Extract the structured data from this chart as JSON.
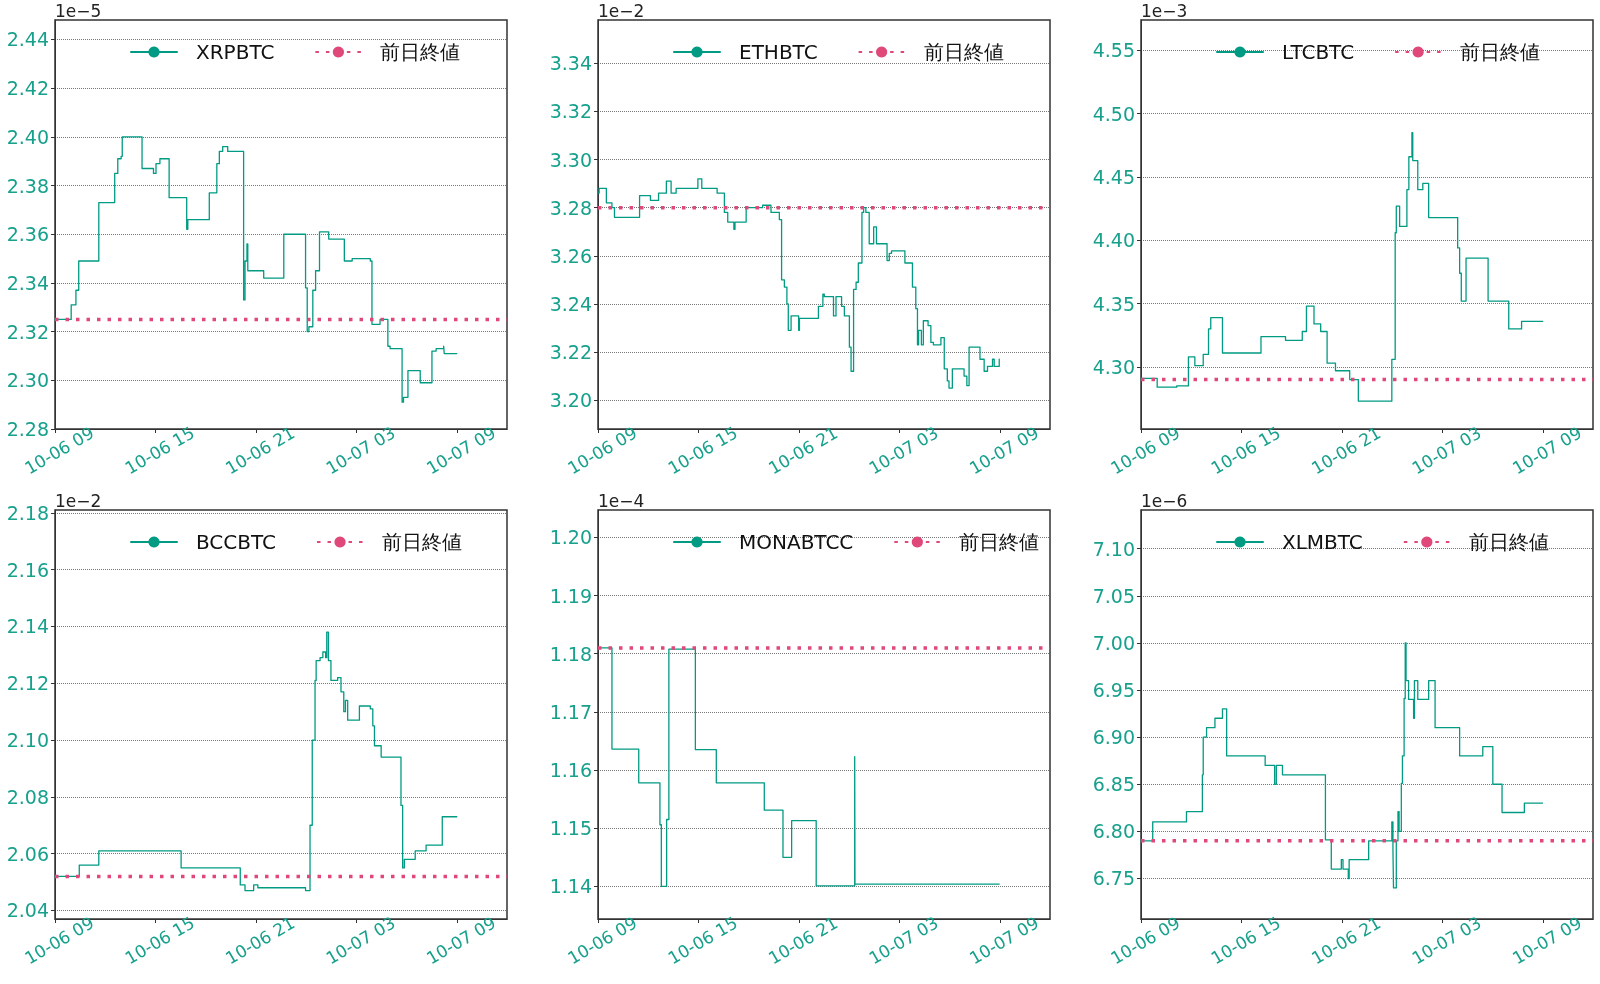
{
  "chart_data": [
    {
      "type": "step",
      "annotations": [
        "1e−5"
      ],
      "legend": "top",
      "grid": "y",
      "xlim": [
        "--10-06T09:00",
        "--10-07T12:00"
      ],
      "xticks": [
        {
          "value": "--10-06T09:00",
          "label": "10-06 09"
        },
        {
          "value": "--10-06T15:00",
          "label": "10-06 15"
        },
        {
          "value": "--10-06T21:00",
          "label": "10-06 21"
        },
        {
          "value": "--10-07T03:00",
          "label": "10-07 03"
        },
        {
          "value": "--10-07T09:00",
          "label": "10-07 09"
        }
      ],
      "ylim": [
        2.28,
        2.448
      ],
      "yticks": [
        {
          "value": 2.28,
          "label": "2.28"
        },
        {
          "value": 2.3,
          "label": "2.30"
        },
        {
          "value": 2.32,
          "label": "2.32"
        },
        {
          "value": 2.34,
          "label": "2.34"
        },
        {
          "value": 2.36,
          "label": "2.36"
        },
        {
          "value": 2.38,
          "label": "2.38"
        },
        {
          "value": 2.4,
          "label": "2.40"
        },
        {
          "value": 2.42,
          "label": "2.42"
        },
        {
          "value": 2.44,
          "label": "2.44"
        }
      ],
      "x": [
        "--10-06T09:00",
        "--10-06T09:58",
        "--10-06T10:15",
        "--10-06T10:25",
        "--10-06T11:37",
        "--10-06T12:34",
        "--10-06T12:45",
        "--10-06T12:57",
        "--10-06T13:01",
        "--10-06T14:12",
        "--10-06T14:53",
        "--10-06T15:02",
        "--10-06T15:16",
        "--10-06T15:49",
        "--10-06T16:52",
        "--10-06T16:56",
        "--10-06T18:13",
        "--10-06T18:40",
        "--10-06T18:49",
        "--10-06T19:01",
        "--10-06T19:19",
        "--10-06T20:16",
        "--10-06T20:21",
        "--10-06T20:28",
        "--10-06T20:31",
        "--10-06T21:28",
        "--10-06T22:40",
        "--10-06T23:58",
        "--10-07T00:04",
        "--10-07T00:10",
        "--10-07T00:24",
        "--10-07T00:34",
        "--10-07T00:48",
        "--10-07T01:21",
        "--10-07T02:17",
        "--10-07T02:45",
        "--10-07T03:50",
        "--10-07T03:56",
        "--10-07T04:25",
        "--10-07T04:53",
        "--10-07T05:01",
        "--10-07T05:44",
        "--10-07T05:49",
        "--10-07T06:05",
        "--10-07T06:49",
        "--10-07T07:31",
        "--10-07T07:46",
        "--10-07T08:13",
        "--10-07T08:15",
        "--10-07T09:00"
      ],
      "series": [
        {
          "name": "XRPBTC",
          "color": "#009b82",
          "values": [
            2.325,
            2.331,
            2.337,
            2.349,
            2.373,
            2.385,
            2.391,
            2.392,
            2.4,
            2.387,
            2.385,
            2.389,
            2.391,
            2.375,
            2.362,
            2.366,
            2.377,
            2.389,
            2.394,
            2.396,
            2.394,
            2.333,
            2.349,
            2.356,
            2.345,
            2.342,
            2.36,
            2.338,
            2.32,
            2.322,
            2.337,
            2.345,
            2.361,
            2.358,
            2.349,
            2.35,
            2.349,
            2.323,
            2.325,
            2.314,
            2.313,
            2.291,
            2.293,
            2.304,
            2.299,
            2.312,
            2.313,
            2.314,
            2.311,
            2.311
          ]
        }
      ],
      "ref_lines": [
        {
          "axis": "y",
          "value": 2.325,
          "label": "前日終値",
          "color": "#e0487a",
          "line_style": "dotted"
        }
      ]
    },
    {
      "type": "step",
      "annotations": [
        "1e−2"
      ],
      "legend": "top",
      "grid": "y",
      "xlim": [
        "--10-06T09:00",
        "--10-07T12:00"
      ],
      "xticks": [
        {
          "value": "--10-06T09:00",
          "label": "10-06 09"
        },
        {
          "value": "--10-06T15:00",
          "label": "10-06 15"
        },
        {
          "value": "--10-06T21:00",
          "label": "10-06 21"
        },
        {
          "value": "--10-07T03:00",
          "label": "10-07 03"
        },
        {
          "value": "--10-07T09:00",
          "label": "10-07 09"
        }
      ],
      "ylim": [
        3.188,
        3.358
      ],
      "yticks": [
        {
          "value": 3.2,
          "label": "3.20"
        },
        {
          "value": 3.22,
          "label": "3.22"
        },
        {
          "value": 3.24,
          "label": "3.24"
        },
        {
          "value": 3.26,
          "label": "3.26"
        },
        {
          "value": 3.28,
          "label": "3.28"
        },
        {
          "value": 3.3,
          "label": "3.30"
        },
        {
          "value": 3.32,
          "label": "3.32"
        },
        {
          "value": 3.34,
          "label": "3.34"
        }
      ],
      "x": [
        "--10-06T09:00",
        "--10-06T09:04",
        "--10-06T09:30",
        "--10-06T09:50",
        "--10-06T09:59",
        "--10-06T11:29",
        "--10-06T12:08",
        "--10-06T12:37",
        "--10-06T13:05",
        "--10-06T13:22",
        "--10-06T13:40",
        "--10-06T14:04",
        "--10-06T14:58",
        "--10-06T15:12",
        "--10-06T16:07",
        "--10-06T16:33",
        "--10-06T16:45",
        "--10-06T17:07",
        "--10-06T17:11",
        "--10-06T17:51",
        "--10-06T18:50",
        "--10-06T19:20",
        "--10-06T19:50",
        "--10-06T19:58",
        "--10-06T20:08",
        "--10-06T20:17",
        "--10-06T20:22",
        "--10-06T20:32",
        "--10-06T20:59",
        "--10-06T21:02",
        "--10-06T22:10",
        "--10-06T22:26",
        "--10-06T22:31",
        "--10-06T23:04",
        "--10-06T23:13",
        "--10-06T23:33",
        "--10-06T23:43",
        "--10-07T00:01",
        "--10-07T00:07",
        "--10-07T00:16",
        "--10-07T00:25",
        "--10-07T00:33",
        "--10-07T00:46",
        "--10-07T00:52",
        "--10-07T01:00",
        "--10-07T01:12",
        "--10-07T01:28",
        "--10-07T01:38",
        "--10-07T02:00",
        "--10-07T02:16",
        "--10-07T02:24",
        "--10-07T02:32",
        "--10-07T03:20",
        "--10-07T03:47",
        "--10-07T03:59",
        "--10-07T04:05",
        "--10-07T04:09",
        "--10-07T04:19",
        "--10-07T04:26",
        "--10-07T04:43",
        "--10-07T04:53",
        "--10-07T05:02",
        "--10-07T05:29",
        "--10-07T05:41",
        "--10-07T05:52",
        "--10-07T05:58",
        "--10-07T06:10",
        "--10-07T06:52",
        "--10-07T07:02",
        "--10-07T07:10",
        "--10-07T07:49",
        "--10-07T08:04",
        "--10-07T08:16",
        "--10-07T08:34",
        "--10-07T08:40",
        "--10-07T08:58"
      ],
      "series": [
        {
          "name": "ETHBTC",
          "color": "#009b82",
          "values": [
            3.286,
            3.288,
            3.282,
            3.28,
            3.276,
            3.285,
            3.283,
            3.286,
            3.291,
            3.286,
            3.288,
            3.288,
            3.292,
            3.288,
            3.286,
            3.278,
            3.274,
            3.271,
            3.274,
            3.28,
            3.281,
            3.278,
            3.275,
            3.25,
            3.247,
            3.24,
            3.229,
            3.235,
            3.229,
            3.234,
            3.239,
            3.244,
            3.243,
            3.235,
            3.243,
            3.239,
            3.235,
            3.222,
            3.212,
            3.246,
            3.249,
            3.257,
            3.278,
            3.28,
            3.278,
            3.265,
            3.272,
            3.265,
            3.265,
            3.258,
            3.261,
            3.262,
            3.257,
            3.247,
            3.238,
            3.223,
            3.229,
            3.223,
            3.233,
            3.231,
            3.224,
            3.223,
            3.226,
            3.213,
            3.208,
            3.205,
            3.213,
            3.21,
            3.206,
            3.222,
            3.217,
            3.212,
            3.214,
            3.217,
            3.214,
            3.217
          ]
        }
      ],
      "ref_lines": [
        {
          "axis": "y",
          "value": 3.28,
          "label": "前日終値",
          "color": "#e0487a",
          "line_style": "dotted"
        }
      ]
    },
    {
      "type": "step",
      "annotations": [
        "1e−3"
      ],
      "legend": "top",
      "grid": "y",
      "xlim": [
        "--10-06T09:00",
        "--10-07T12:00"
      ],
      "xticks": [
        {
          "value": "--10-06T09:00",
          "label": "10-06 09"
        },
        {
          "value": "--10-06T15:00",
          "label": "10-06 15"
        },
        {
          "value": "--10-06T21:00",
          "label": "10-06 21"
        },
        {
          "value": "--10-07T03:00",
          "label": "10-07 03"
        },
        {
          "value": "--10-07T09:00",
          "label": "10-07 09"
        }
      ],
      "ylim": [
        4.251,
        4.574
      ],
      "yticks": [
        {
          "value": 4.3,
          "label": "4.30"
        },
        {
          "value": 4.35,
          "label": "4.35"
        },
        {
          "value": 4.4,
          "label": "4.40"
        },
        {
          "value": 4.45,
          "label": "4.45"
        },
        {
          "value": 4.5,
          "label": "4.50"
        },
        {
          "value": 4.55,
          "label": "4.55"
        }
      ],
      "x": [
        "--10-06T09:00",
        "--10-06T09:58",
        "--10-06T11:08",
        "--10-06T11:50",
        "--10-06T12:13",
        "--10-06T12:43",
        "--10-06T13:02",
        "--10-06T13:10",
        "--10-06T13:52",
        "--10-06T16:10",
        "--10-06T17:38",
        "--10-06T18:38",
        "--10-06T18:53",
        "--10-06T19:20",
        "--10-06T19:44",
        "--10-06T20:07",
        "--10-06T20:37",
        "--10-06T21:28",
        "--10-06T21:59",
        "--10-06T23:59",
        "--10-07T00:11",
        "--10-07T00:15",
        "--10-07T00:27",
        "--10-07T00:53",
        "--10-07T01:00",
        "--10-07T01:11",
        "--10-07T01:14",
        "--10-07T01:32",
        "--10-07T01:50",
        "--10-07T02:11",
        "--10-07T03:55",
        "--10-07T04:02",
        "--10-07T04:08",
        "--10-07T04:25",
        "--10-07T05:44",
        "--10-07T06:58",
        "--10-07T07:44",
        "--10-07T09:00"
      ],
      "series": [
        {
          "name": "LTCBTC",
          "color": "#009b82",
          "values": [
            4.291,
            4.284,
            4.285,
            4.308,
            4.301,
            4.31,
            4.33,
            4.339,
            4.311,
            4.324,
            4.321,
            4.328,
            4.348,
            4.334,
            4.328,
            4.303,
            4.297,
            4.29,
            4.273,
            4.306,
            4.406,
            4.427,
            4.411,
            4.44,
            4.466,
            4.485,
            4.463,
            4.44,
            4.445,
            4.418,
            4.394,
            4.374,
            4.352,
            4.386,
            4.352,
            4.33,
            4.336,
            4.336
          ]
        }
      ],
      "ref_lines": [
        {
          "axis": "y",
          "value": 4.29,
          "label": "前日終値",
          "color": "#e0487a",
          "line_style": "dotted"
        }
      ]
    },
    {
      "type": "step",
      "annotations": [
        "1e−2"
      ],
      "legend": "top",
      "grid": "y",
      "xlim": [
        "--10-06T09:00",
        "--10-07T12:00"
      ],
      "xticks": [
        {
          "value": "--10-06T09:00",
          "label": "10-06 09"
        },
        {
          "value": "--10-06T15:00",
          "label": "10-06 15"
        },
        {
          "value": "--10-06T21:00",
          "label": "10-06 21"
        },
        {
          "value": "--10-07T03:00",
          "label": "10-07 03"
        },
        {
          "value": "--10-07T09:00",
          "label": "10-07 09"
        }
      ],
      "ylim": [
        2.037,
        2.181
      ],
      "yticks": [
        {
          "value": 2.04,
          "label": "2.04"
        },
        {
          "value": 2.06,
          "label": "2.06"
        },
        {
          "value": 2.08,
          "label": "2.08"
        },
        {
          "value": 2.1,
          "label": "2.10"
        },
        {
          "value": 2.12,
          "label": "2.12"
        },
        {
          "value": 2.14,
          "label": "2.14"
        },
        {
          "value": 2.16,
          "label": "2.16"
        },
        {
          "value": 2.18,
          "label": "2.18"
        }
      ],
      "x": [
        "--10-06T09:00",
        "--10-06T10:27",
        "--10-06T11:37",
        "--10-06T13:05",
        "--10-06T16:32",
        "--10-06T20:04",
        "--10-06T20:21",
        "--10-06T20:52",
        "--10-06T21:07",
        "--10-06T21:55",
        "--10-06T23:58",
        "--10-07T00:14",
        "--10-07T00:22",
        "--10-07T00:32",
        "--10-07T00:36",
        "--10-07T00:50",
        "--10-07T01:00",
        "--10-07T01:10",
        "--10-07T01:14",
        "--10-07T01:20",
        "--10-07T01:29",
        "--10-07T01:53",
        "--10-07T02:05",
        "--10-07T02:15",
        "--10-07T02:21",
        "--10-07T02:29",
        "--10-07T03:11",
        "--10-07T03:50",
        "--10-07T03:59",
        "--10-07T04:05",
        "--10-07T04:29",
        "--10-07T05:40",
        "--10-07T05:46",
        "--10-07T05:52",
        "--10-07T06:31",
        "--10-07T07:10",
        "--10-07T08:08",
        "--10-07T09:00"
      ],
      "series": [
        {
          "name": "BCCBTC",
          "color": "#009b82",
          "values": [
            2.052,
            2.056,
            2.061,
            2.061,
            2.055,
            2.049,
            2.047,
            2.049,
            2.048,
            2.048,
            2.047,
            2.07,
            2.1,
            2.121,
            2.128,
            2.129,
            2.131,
            2.129,
            2.138,
            2.128,
            2.121,
            2.122,
            2.117,
            2.11,
            2.114,
            2.107,
            2.112,
            2.111,
            2.105,
            2.098,
            2.094,
            2.077,
            2.055,
            2.058,
            2.061,
            2.063,
            2.073,
            2.073
          ]
        }
      ],
      "ref_lines": [
        {
          "axis": "y",
          "value": 2.052,
          "label": "前日終値",
          "color": "#e0487a",
          "line_style": "dotted"
        }
      ]
    },
    {
      "type": "step",
      "annotations": [
        "1e−4"
      ],
      "legend": "top",
      "grid": "y",
      "xlim": [
        "--10-06T09:00",
        "--10-07T12:00"
      ],
      "xticks": [
        {
          "value": "--10-06T09:00",
          "label": "10-06 09"
        },
        {
          "value": "--10-06T15:00",
          "label": "10-06 15"
        },
        {
          "value": "--10-06T21:00",
          "label": "10-06 21"
        },
        {
          "value": "--10-07T03:00",
          "label": "10-07 03"
        },
        {
          "value": "--10-07T09:00",
          "label": "10-07 09"
        }
      ],
      "ylim": [
        1.1344,
        1.2047
      ],
      "yticks": [
        {
          "value": 1.14,
          "label": "1.14"
        },
        {
          "value": 1.15,
          "label": "1.15"
        },
        {
          "value": 1.16,
          "label": "1.16"
        },
        {
          "value": 1.17,
          "label": "1.17"
        },
        {
          "value": 1.18,
          "label": "1.18"
        },
        {
          "value": 1.19,
          "label": "1.19"
        },
        {
          "value": 1.2,
          "label": "1.20"
        }
      ],
      "x": [
        "--10-06T09:00",
        "--10-06T09:50",
        "--10-06T11:26",
        "--10-06T12:42",
        "--10-06T12:47",
        "--10-06T13:06",
        "--10-06T13:14",
        "--10-06T14:49",
        "--10-06T16:04",
        "--10-06T18:56",
        "--10-06T20:03",
        "--10-06T20:34",
        "--10-06T22:02",
        "--10-07T00:20",
        "--10-07T00:21",
        "--10-07T08:58"
      ],
      "series": [
        {
          "name": "MONABTCC",
          "color": "#009b82",
          "values": [
            1.181,
            1.1636,
            1.1578,
            1.1506,
            1.14,
            1.1515,
            1.1808,
            1.1635,
            1.1578,
            1.1531,
            1.145,
            1.1513,
            1.1401,
            1.1623,
            1.1404,
            1.1404
          ]
        }
      ],
      "ref_lines": [
        {
          "axis": "y",
          "value": 1.181,
          "label": "前日終値",
          "color": "#e0487a",
          "line_style": "dotted"
        }
      ]
    },
    {
      "type": "step",
      "annotations": [
        "1e−6"
      ],
      "legend": "top",
      "grid": "y",
      "xlim": [
        "--10-06T09:00",
        "--10-07T12:00"
      ],
      "xticks": [
        {
          "value": "--10-06T09:00",
          "label": "10-06 09"
        },
        {
          "value": "--10-06T15:00",
          "label": "10-06 15"
        },
        {
          "value": "--10-06T21:00",
          "label": "10-06 21"
        },
        {
          "value": "--10-07T03:00",
          "label": "10-07 03"
        },
        {
          "value": "--10-07T09:00",
          "label": "10-07 09"
        }
      ],
      "ylim": [
        6.707,
        7.141
      ],
      "yticks": [
        {
          "value": 6.75,
          "label": "6.75"
        },
        {
          "value": 6.8,
          "label": "6.80"
        },
        {
          "value": 6.85,
          "label": "6.85"
        },
        {
          "value": 6.9,
          "label": "6.90"
        },
        {
          "value": 6.95,
          "label": "6.95"
        },
        {
          "value": 7.0,
          "label": "7.00"
        },
        {
          "value": 7.05,
          "label": "7.05"
        },
        {
          "value": 7.1,
          "label": "7.10"
        }
      ],
      "x": [
        "--10-06T09:00",
        "--10-06T09:42",
        "--10-06T11:43",
        "--10-06T12:40",
        "--10-06T12:43",
        "--10-06T12:55",
        "--10-06T13:25",
        "--10-06T13:52",
        "--10-06T14:07",
        "--10-06T16:25",
        "--10-06T16:59",
        "--10-06T17:05",
        "--10-06T17:27",
        "--10-06T20:01",
        "--10-06T20:22",
        "--10-06T20:58",
        "--10-06T21:04",
        "--10-06T21:23",
        "--10-06T21:26",
        "--10-06T22:36",
        "--10-06T23:59",
        "--10-07T00:03",
        "--10-07T00:05",
        "--10-07T00:15",
        "--10-07T00:21",
        "--10-07T00:25",
        "--10-07T00:33",
        "--10-07T00:37",
        "--10-07T00:43",
        "--10-07T00:47",
        "--10-07T00:50",
        "--10-07T00:59",
        "--10-07T01:17",
        "--10-07T01:20",
        "--10-07T01:32",
        "--10-07T02:11",
        "--10-07T02:34",
        "--10-07T04:02",
        "--10-07T05:25",
        "--10-07T06:01",
        "--10-07T06:34",
        "--10-07T07:54",
        "--10-07T08:59"
      ],
      "series": [
        {
          "name": "XLMBTC",
          "color": "#009b82",
          "values": [
            6.79,
            6.81,
            6.821,
            6.86,
            6.9,
            6.91,
            6.92,
            6.93,
            6.88,
            6.87,
            6.85,
            6.87,
            6.86,
            6.791,
            6.76,
            6.77,
            6.76,
            6.75,
            6.77,
            6.79,
            6.81,
            6.78,
            6.74,
            6.79,
            6.821,
            6.8,
            6.851,
            6.88,
            6.941,
            7.0,
            6.96,
            6.94,
            6.92,
            6.96,
            6.94,
            6.96,
            6.91,
            6.88,
            6.89,
            6.85,
            6.82,
            6.83,
            6.83
          ]
        }
      ],
      "ref_lines": [
        {
          "axis": "y",
          "value": 6.79,
          "label": "前日終値",
          "color": "#e0487a",
          "line_style": "dotted"
        }
      ]
    }
  ]
}
